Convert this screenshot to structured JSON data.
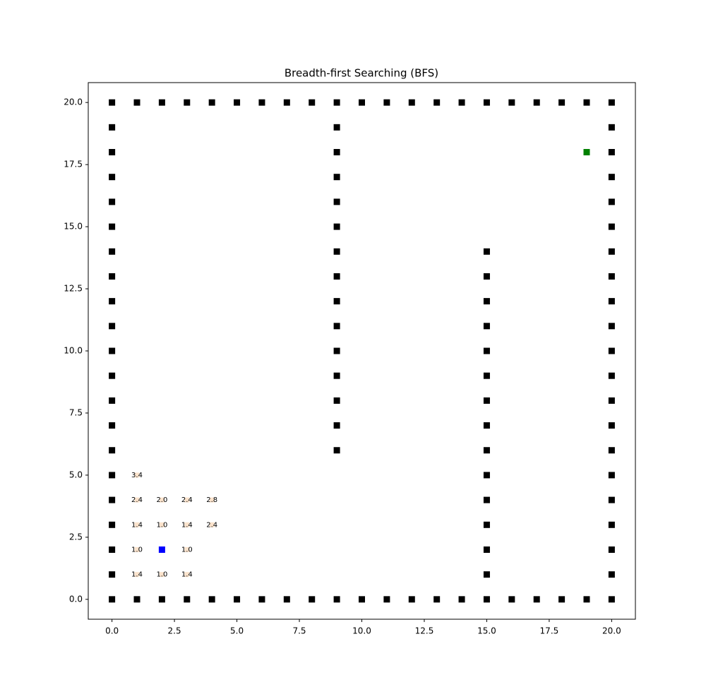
{
  "chart_data": {
    "type": "scatter",
    "title": "Breadth-first Searching (BFS)",
    "xlim": [
      -0.95,
      20.95
    ],
    "ylim": [
      -0.8,
      20.8
    ],
    "xticks": [
      {
        "value": 0,
        "label": "0.0"
      },
      {
        "value": 2.5,
        "label": "2.5"
      },
      {
        "value": 5,
        "label": "5.0"
      },
      {
        "value": 7.5,
        "label": "7.5"
      },
      {
        "value": 10,
        "label": "10.0"
      },
      {
        "value": 12.5,
        "label": "12.5"
      },
      {
        "value": 15,
        "label": "15.0"
      },
      {
        "value": 17.5,
        "label": "17.5"
      },
      {
        "value": 20,
        "label": "20.0"
      }
    ],
    "yticks": [
      {
        "value": 0,
        "label": "0.0"
      },
      {
        "value": 2.5,
        "label": "2.5"
      },
      {
        "value": 5,
        "label": "5.0"
      },
      {
        "value": 7.5,
        "label": "7.5"
      },
      {
        "value": 10,
        "label": "10.0"
      },
      {
        "value": 12.5,
        "label": "12.5"
      },
      {
        "value": 15,
        "label": "15.0"
      },
      {
        "value": 17.5,
        "label": "17.5"
      },
      {
        "value": 20,
        "label": "20.0"
      }
    ],
    "series": [
      {
        "color": "#000000",
        "x": [
          0,
          1,
          2,
          3,
          4,
          5,
          6,
          7,
          8,
          9,
          10,
          11,
          12,
          13,
          14,
          15,
          16,
          17,
          18,
          19,
          20
        ],
        "values": [
          0,
          0,
          0,
          0,
          0,
          0,
          0,
          0,
          0,
          0,
          0,
          0,
          0,
          0,
          0,
          0,
          0,
          0,
          0,
          0,
          0
        ]
      },
      {
        "color": "#000000",
        "x": [
          0,
          1,
          2,
          3,
          4,
          5,
          6,
          7,
          8,
          9,
          10,
          11,
          12,
          13,
          14,
          15,
          16,
          17,
          18,
          19,
          20
        ],
        "values": [
          20,
          20,
          20,
          20,
          20,
          20,
          20,
          20,
          20,
          20,
          20,
          20,
          20,
          20,
          20,
          20,
          20,
          20,
          20,
          20,
          20
        ]
      },
      {
        "color": "#000000",
        "x": [
          0,
          0,
          0,
          0,
          0,
          0,
          0,
          0,
          0,
          0,
          0,
          0,
          0,
          0,
          0,
          0,
          0,
          0,
          0
        ],
        "values": [
          1,
          2,
          3,
          4,
          5,
          6,
          7,
          8,
          9,
          10,
          11,
          12,
          13,
          14,
          15,
          16,
          17,
          18,
          19
        ]
      },
      {
        "color": "#000000",
        "x": [
          20,
          20,
          20,
          20,
          20,
          20,
          20,
          20,
          20,
          20,
          20,
          20,
          20,
          20,
          20,
          20,
          20,
          20,
          20
        ],
        "values": [
          1,
          2,
          3,
          4,
          5,
          6,
          7,
          8,
          9,
          10,
          11,
          12,
          13,
          14,
          15,
          16,
          17,
          18,
          19
        ]
      },
      {
        "color": "#000000",
        "x": [
          9,
          9,
          9,
          9,
          9,
          9,
          9,
          9,
          9,
          9,
          9,
          9,
          9,
          9
        ],
        "values": [
          6,
          7,
          8,
          9,
          10,
          11,
          12,
          13,
          14,
          15,
          16,
          17,
          18,
          19
        ]
      },
      {
        "color": "#000000",
        "x": [
          15,
          15,
          15,
          15,
          15,
          15,
          15,
          15,
          15,
          15,
          15,
          15,
          15,
          15
        ],
        "values": [
          1,
          2,
          3,
          4,
          5,
          6,
          7,
          8,
          9,
          10,
          11,
          12,
          13,
          14
        ]
      },
      {
        "color": "#fbe3cc",
        "x": [
          1,
          1,
          2,
          3,
          4,
          1,
          2,
          3,
          4,
          1,
          3,
          1,
          2,
          3
        ],
        "values": [
          5,
          4,
          4,
          4,
          4,
          3,
          3,
          3,
          3,
          2,
          2,
          1,
          1,
          1
        ],
        "labels": [
          "3.4",
          "2.4",
          "2.0",
          "2.4",
          "2.8",
          "1.4",
          "1.0",
          "1.4",
          "2.4",
          "1.0",
          "1.0",
          "1.4",
          "1.0",
          "1.4"
        ]
      },
      {
        "color": "#0000ff",
        "x": [
          2
        ],
        "values": [
          2
        ]
      },
      {
        "color": "#008000",
        "x": [
          19
        ],
        "values": [
          18
        ]
      }
    ]
  }
}
